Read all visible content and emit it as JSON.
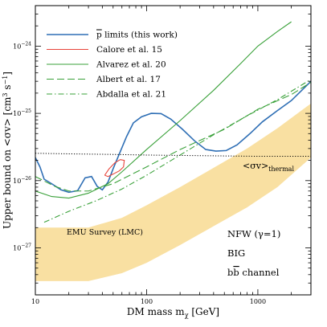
{
  "chart_data": {
    "type": "line",
    "x_axis": {
      "label_prefix": "DM mass m",
      "label_sub": "χ",
      "label_suffix": " [GeV]",
      "scale": "log",
      "range": [
        10,
        3000
      ],
      "tick_values": [
        10,
        100,
        1000
      ],
      "tick_labels": [
        "10",
        "100",
        "1000"
      ]
    },
    "y_axis": {
      "label_prefix": "Upper bound on <σv> [cm",
      "label_sup1": "3",
      "label_mid": " s",
      "label_sup2": "−1",
      "label_suffix": "]",
      "scale": "log",
      "range": [
        2e-28,
        4e-24
      ],
      "tick_values": [
        1e-27,
        1e-26,
        1e-25,
        1e-24
      ],
      "tick_labels": [
        {
          "base": "10",
          "exp": "−27"
        },
        {
          "base": "10",
          "exp": "−26"
        },
        {
          "base": "10",
          "exp": "−25"
        },
        {
          "base": "10",
          "exp": "−24"
        }
      ]
    },
    "legend_position": "top-left",
    "grid": false,
    "series": [
      {
        "name": "p̄ limits (this work)",
        "color": "#2f6fb5",
        "style": "solid",
        "points": [
          [
            10,
            2.2e-26
          ],
          [
            11,
            1.6e-26
          ],
          [
            12,
            1.05e-26
          ],
          [
            14,
            9e-27
          ],
          [
            17,
            7.3e-27
          ],
          [
            20,
            6.7e-27
          ],
          [
            24,
            7.1e-27
          ],
          [
            28,
            1.1e-26
          ],
          [
            32,
            1.15e-26
          ],
          [
            36,
            8.2e-27
          ],
          [
            40,
            7.3e-27
          ],
          [
            45,
            9.5e-27
          ],
          [
            50,
            1.5e-26
          ],
          [
            58,
            2.7e-26
          ],
          [
            66,
            4.5e-26
          ],
          [
            76,
            7.2e-26
          ],
          [
            90,
            8.9e-26
          ],
          [
            110,
            1e-25
          ],
          [
            135,
            9.9e-26
          ],
          [
            165,
            8.2e-26
          ],
          [
            210,
            5.8e-26
          ],
          [
            270,
            3.9e-26
          ],
          [
            340,
            2.9e-26
          ],
          [
            420,
            2.75e-26
          ],
          [
            520,
            2.8e-26
          ],
          [
            650,
            3.4e-26
          ],
          [
            850,
            5e-26
          ],
          [
            1100,
            7.5e-26
          ],
          [
            1500,
            1.1e-25
          ],
          [
            2000,
            1.55e-25
          ],
          [
            3000,
            3e-25
          ]
        ]
      },
      {
        "name": "Calore et al. 15",
        "color": "#e8443a",
        "style": "solid",
        "points": [
          [
            42,
            1.2e-26
          ],
          [
            46,
            1.5e-26
          ],
          [
            52,
            1.85e-26
          ],
          [
            58,
            2.05e-26
          ],
          [
            63,
            2e-26
          ],
          [
            62,
            1.6e-26
          ],
          [
            57,
            1.4e-26
          ],
          [
            50,
            1.25e-26
          ],
          [
            45,
            1.15e-26
          ],
          [
            42,
            1.2e-26
          ]
        ]
      },
      {
        "name": "Alvarez et al. 20",
        "color": "#3aa13a",
        "style": "solid",
        "points": [
          [
            10,
            7e-27
          ],
          [
            14,
            5.8e-27
          ],
          [
            20,
            5.5e-27
          ],
          [
            30,
            6.5e-27
          ],
          [
            45,
            9e-27
          ],
          [
            60,
            1.35e-26
          ],
          [
            100,
            2.9e-26
          ],
          [
            200,
            7.8e-26
          ],
          [
            400,
            2.2e-25
          ],
          [
            700,
            5.5e-25
          ],
          [
            1000,
            1e-24
          ],
          [
            1500,
            1.65e-24
          ],
          [
            2000,
            2.3e-24
          ]
        ]
      },
      {
        "name": "Albert et al. 17",
        "color": "#3aa13a",
        "style": "dashed",
        "points": [
          [
            10,
            1.15e-26
          ],
          [
            15,
            8.2e-27
          ],
          [
            20,
            7e-27
          ],
          [
            30,
            7e-27
          ],
          [
            50,
            9e-27
          ],
          [
            100,
            1.6e-26
          ],
          [
            200,
            2.9e-26
          ],
          [
            500,
            5.8e-26
          ],
          [
            1000,
            1.15e-25
          ],
          [
            2000,
            1.9e-25
          ],
          [
            3000,
            2.9e-25
          ]
        ]
      },
      {
        "name": "Abdalla et al. 21",
        "color": "#3aa13a",
        "style": "dashdot",
        "points": [
          [
            12,
            2.4e-27
          ],
          [
            20,
            3.5e-27
          ],
          [
            35,
            5e-27
          ],
          [
            60,
            7.5e-27
          ],
          [
            100,
            1.2e-26
          ],
          [
            200,
            2.4e-26
          ],
          [
            400,
            4.8e-26
          ],
          [
            800,
            9.2e-26
          ],
          [
            1500,
            1.6e-25
          ],
          [
            3000,
            3.2e-25
          ]
        ]
      },
      {
        "name": "<σv>thermal",
        "color": "#000000",
        "style": "dotted",
        "points": [
          [
            10,
            2.55e-26
          ],
          [
            20,
            2.5e-26
          ],
          [
            50,
            2.45e-26
          ],
          [
            100,
            2.4e-26
          ],
          [
            300,
            2.35e-26
          ],
          [
            1000,
            2.3e-26
          ],
          [
            3000,
            2.3e-26
          ]
        ]
      }
    ],
    "bands": [
      {
        "name": "EMU Survey (LMC)",
        "color": "#f9e0a2",
        "upper": [
          [
            10,
            2e-27
          ],
          [
            30,
            2e-27
          ],
          [
            60,
            2.8e-27
          ],
          [
            100,
            4.3e-27
          ],
          [
            200,
            8e-27
          ],
          [
            400,
            1.55e-26
          ],
          [
            800,
            3e-26
          ],
          [
            1500,
            6e-26
          ],
          [
            3000,
            1.4e-25
          ]
        ],
        "lower": [
          [
            10,
            3.2e-28
          ],
          [
            30,
            3.2e-28
          ],
          [
            60,
            4.2e-28
          ],
          [
            100,
            6e-28
          ],
          [
            200,
            1.1e-27
          ],
          [
            400,
            2.1e-27
          ],
          [
            800,
            4e-27
          ],
          [
            1500,
            8e-27
          ],
          [
            3000,
            2.2e-26
          ]
        ]
      }
    ],
    "legend": [
      {
        "prefix": "",
        "over": "p",
        "suffix": " limits (this work)",
        "color": "#2f6fb5",
        "style": "solid"
      },
      {
        "prefix": "Calore et al. 15",
        "over": "",
        "suffix": "",
        "color": "#e8443a",
        "style": "solid"
      },
      {
        "prefix": "Alvarez et al. 20",
        "over": "",
        "suffix": "",
        "color": "#3aa13a",
        "style": "solid"
      },
      {
        "prefix": "Albert et al. 17",
        "over": "",
        "suffix": "",
        "color": "#3aa13a",
        "style": "dashed"
      },
      {
        "prefix": "Abdalla et al. 21",
        "over": "",
        "suffix": "",
        "color": "#3aa13a",
        "style": "dashdot"
      }
    ],
    "annotations": {
      "thermal_label_main": "<σv>",
      "thermal_label_sub": "thermal",
      "band_label": "EMU Survey (LMC)",
      "profile": "NFW (γ=1)",
      "propagation": "BIG",
      "channel_prefix": "b",
      "channel_over": "b",
      "channel_suffix": " channel"
    }
  }
}
